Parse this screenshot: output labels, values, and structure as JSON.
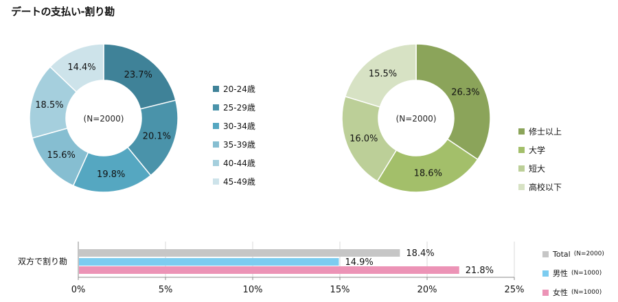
{
  "title": "デートの支払い-割り勘",
  "chart_data": [
    {
      "type": "pie",
      "variant": "donut",
      "center_label": "(N=2000)",
      "slices": [
        {
          "label": "20-24歳",
          "value": 23.7,
          "display": "23.7%",
          "color": "#3f8298"
        },
        {
          "label": "25-29歳",
          "value": 20.1,
          "display": "20.1%",
          "color": "#4a93aa"
        },
        {
          "label": "30-34歳",
          "value": 19.8,
          "display": "19.8%",
          "color": "#55a7c1"
        },
        {
          "label": "35-39歳",
          "value": 15.6,
          "display": "15.6%",
          "color": "#86bed1"
        },
        {
          "label": "40-44歳",
          "value": 18.5,
          "display": "18.5%",
          "color": "#a5cfdd"
        },
        {
          "label": "45-49歳",
          "value": 14.4,
          "display": "14.4%",
          "color": "#cde3ea"
        }
      ],
      "legend_position": "right"
    },
    {
      "type": "pie",
      "variant": "donut",
      "center_label": "(N=2000)",
      "slices": [
        {
          "label": "修士以上",
          "value": 26.3,
          "display": "26.3%",
          "color": "#8ba45a"
        },
        {
          "label": "大学",
          "value": 18.6,
          "display": "18.6%",
          "color": "#a3bf6a"
        },
        {
          "label": "短大",
          "value": 16.0,
          "display": "16.0%",
          "color": "#bccf98"
        },
        {
          "label": "高校以下",
          "value": 15.5,
          "display": "15.5%",
          "color": "#d7e2c4"
        }
      ],
      "legend_position": "right"
    },
    {
      "type": "bar",
      "orientation": "horizontal",
      "categories": [
        "双方で割り勘"
      ],
      "series": [
        {
          "name": "Total",
          "n": "(N=2000)",
          "values": [
            18.4
          ],
          "display": "18.4%",
          "color": "#c6c6c6"
        },
        {
          "name": "男性",
          "n": "(N=1000)",
          "values": [
            14.9
          ],
          "display": "14.9%",
          "color": "#7cccf0"
        },
        {
          "name": "女性",
          "n": "(N=1000)",
          "values": [
            21.8
          ],
          "display": "21.8%",
          "color": "#ec93b6"
        }
      ],
      "xlim": [
        0,
        25
      ],
      "xticks": [
        "0%",
        "5%",
        "10%",
        "15%",
        "20%",
        "25%"
      ],
      "grid": true,
      "legend_position": "right"
    }
  ]
}
